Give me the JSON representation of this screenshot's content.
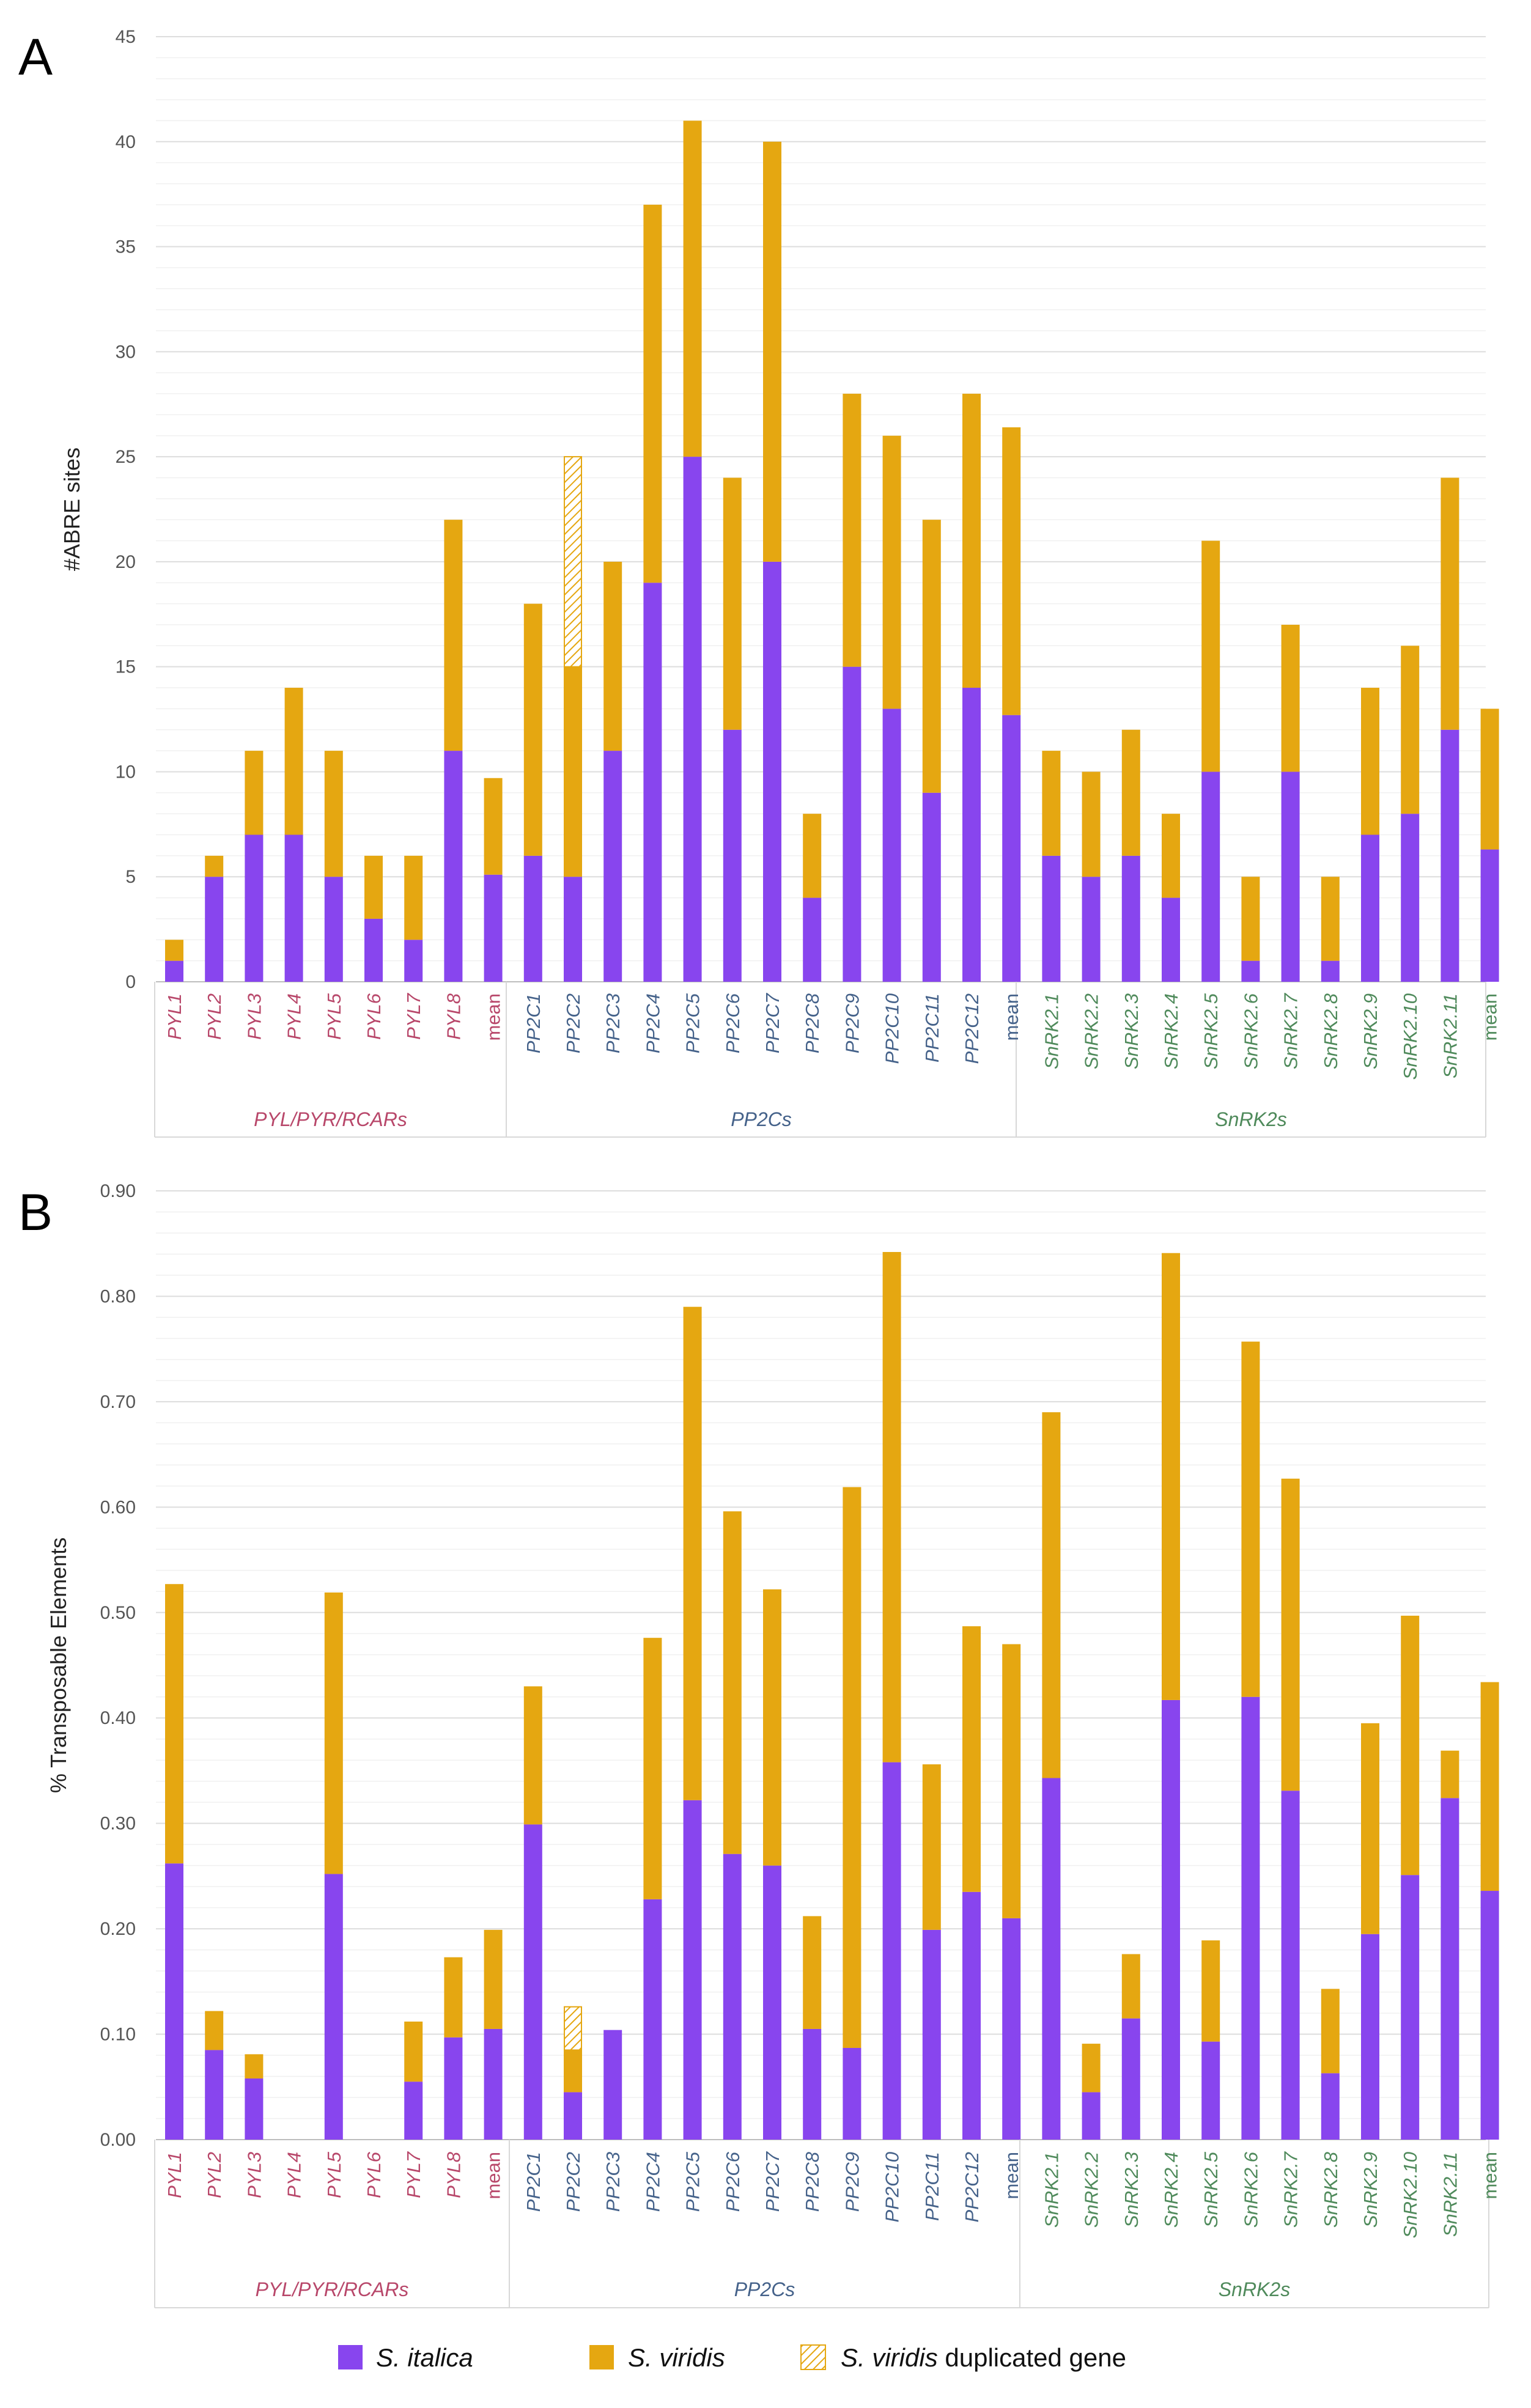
{
  "figure": {
    "colors": {
      "s_italica": "#8845EE",
      "s_viridis": "#E5A711",
      "pyl_group": "#B8476A",
      "pp2c_group": "#45628A",
      "snrk_group": "#4F8A5B",
      "grid": "#E6E6E6",
      "axis": "#BDBDBD"
    },
    "legend": {
      "s_italica": "S. italica",
      "s_viridis": "S. viridis",
      "dup_name": "S. viridis",
      "dup_suffix": "duplicated gene"
    }
  },
  "chart_data": [
    {
      "panel": "A",
      "type": "bar",
      "stacked": true,
      "ylabel": "#ABRE sites",
      "ylim": [
        0,
        45
      ],
      "yticks": [
        0,
        5,
        10,
        15,
        20,
        25,
        30,
        35,
        40,
        45
      ],
      "ytick_labels": [
        "0",
        "5",
        "10",
        "15",
        "20",
        "25",
        "30",
        "35",
        "40",
        "45"
      ],
      "grid": true,
      "groups": [
        {
          "name": "PYL/PYR/RCARs",
          "key": "pyl",
          "categories": [
            "PYL1",
            "PYL2",
            "PYL3",
            "PYL4",
            "PYL5",
            "PYL6",
            "PYL7",
            "PYL8",
            "mean"
          ]
        },
        {
          "name": "PP2Cs",
          "key": "pp2c",
          "categories": [
            "PP2C1",
            "PP2C2",
            "PP2C3",
            "PP2C4",
            "PP2C5",
            "PP2C6",
            "PP2C7",
            "PP2C8",
            "PP2C9",
            "PP2C10",
            "PP2C11",
            "PP2C12",
            "mean"
          ]
        },
        {
          "name": "SnRK2s",
          "key": "snrk",
          "categories": [
            "SnRK2.1",
            "SnRK2.2",
            "SnRK2.3",
            "SnRK2.4",
            "SnRK2.5",
            "SnRK2.6",
            "SnRK2.7",
            "SnRK2.8",
            "SnRK2.9",
            "SnRK2.10",
            "SnRK2.11",
            "mean"
          ]
        }
      ],
      "series": [
        {
          "name": "S. italica",
          "key": "s_italica",
          "values": [
            1,
            5,
            7,
            7,
            5,
            3,
            2,
            11,
            5.1,
            6,
            5,
            11,
            19,
            25,
            12,
            20,
            4,
            15,
            13,
            9,
            14,
            12.7,
            6,
            5,
            6,
            4,
            10,
            1,
            10,
            1,
            7,
            8,
            12,
            6.3
          ]
        },
        {
          "name": "S. viridis",
          "key": "s_viridis",
          "values": [
            1,
            1,
            4,
            7,
            6,
            3,
            4,
            11,
            4.6,
            12,
            10,
            9,
            18,
            16,
            12,
            20,
            4,
            13,
            13,
            13,
            14,
            13.7,
            5,
            5,
            6,
            4,
            11,
            4,
            7,
            4,
            7,
            8,
            12,
            6.7
          ]
        },
        {
          "name": "S. viridis duplicated gene",
          "key": "s_viridis_dup",
          "values": [
            0,
            0,
            0,
            0,
            0,
            0,
            0,
            0,
            0,
            0,
            10,
            0,
            0,
            0,
            0,
            0,
            0,
            0,
            0,
            0,
            0,
            0,
            0,
            0,
            0,
            0,
            0,
            0,
            0,
            0,
            0,
            0,
            0,
            0
          ]
        }
      ]
    },
    {
      "panel": "B",
      "type": "bar",
      "stacked": true,
      "ylabel": "% Transposable Elements",
      "ylim": [
        0,
        0.9
      ],
      "yticks": [
        0,
        0.1,
        0.2,
        0.3,
        0.4,
        0.5,
        0.6,
        0.7,
        0.8,
        0.9
      ],
      "ytick_labels": [
        "0.00",
        "0.10",
        "0.20",
        "0.30",
        "0.40",
        "0.50",
        "0.60",
        "0.70",
        "0.80",
        "0.90"
      ],
      "grid": true,
      "groups": [
        {
          "name": "PYL/PYR/RCARs",
          "key": "pyl",
          "categories": [
            "PYL1",
            "PYL2",
            "PYL3",
            "PYL4",
            "PYL5",
            "PYL6",
            "PYL7",
            "PYL8",
            "mean"
          ]
        },
        {
          "name": "PP2Cs",
          "key": "pp2c",
          "categories": [
            "PP2C1",
            "PP2C2",
            "PP2C3",
            "PP2C4",
            "PP2C5",
            "PP2C6",
            "PP2C7",
            "PP2C8",
            "PP2C9",
            "PP2C10",
            "PP2C11",
            "PP2C12",
            "mean"
          ]
        },
        {
          "name": "SnRK2s",
          "key": "snrk",
          "categories": [
            "SnRK2.1",
            "SnRK2.2",
            "SnRK2.3",
            "SnRK2.4",
            "SnRK2.5",
            "SnRK2.6",
            "SnRK2.7",
            "SnRK2.8",
            "SnRK2.9",
            "SnRK2.10",
            "SnRK2.11",
            "mean"
          ]
        }
      ],
      "series": [
        {
          "name": "S. italica",
          "key": "s_italica",
          "values": [
            0.262,
            0.085,
            0.058,
            0,
            0.252,
            0,
            0.055,
            0.097,
            0.105,
            0.299,
            0.045,
            0.104,
            0.228,
            0.322,
            0.271,
            0.26,
            0.105,
            0.087,
            0.358,
            0.199,
            0.235,
            0.21,
            0.343,
            0.045,
            0.115,
            0.417,
            0.093,
            0.42,
            0.331,
            0.063,
            0.195,
            0.251,
            0.324,
            0.236
          ]
        },
        {
          "name": "S. viridis",
          "key": "s_viridis",
          "values": [
            0.265,
            0.037,
            0.023,
            0,
            0.267,
            0,
            0.057,
            0.076,
            0.094,
            0.131,
            0.04,
            0,
            0.248,
            0.468,
            0.325,
            0.262,
            0.107,
            0.532,
            0.484,
            0.157,
            0.252,
            0.26,
            0.347,
            0.046,
            0.061,
            0.424,
            0.096,
            0.337,
            0.296,
            0.08,
            0.2,
            0.246,
            0.045,
            0.198
          ]
        },
        {
          "name": "S. viridis duplicated gene",
          "key": "s_viridis_dup",
          "values": [
            0,
            0,
            0,
            0,
            0,
            0,
            0,
            0,
            0,
            0,
            0.041,
            0,
            0,
            0,
            0,
            0,
            0,
            0,
            0,
            0,
            0,
            0,
            0,
            0,
            0,
            0,
            0,
            0,
            0,
            0,
            0,
            0,
            0,
            0
          ]
        }
      ]
    }
  ]
}
